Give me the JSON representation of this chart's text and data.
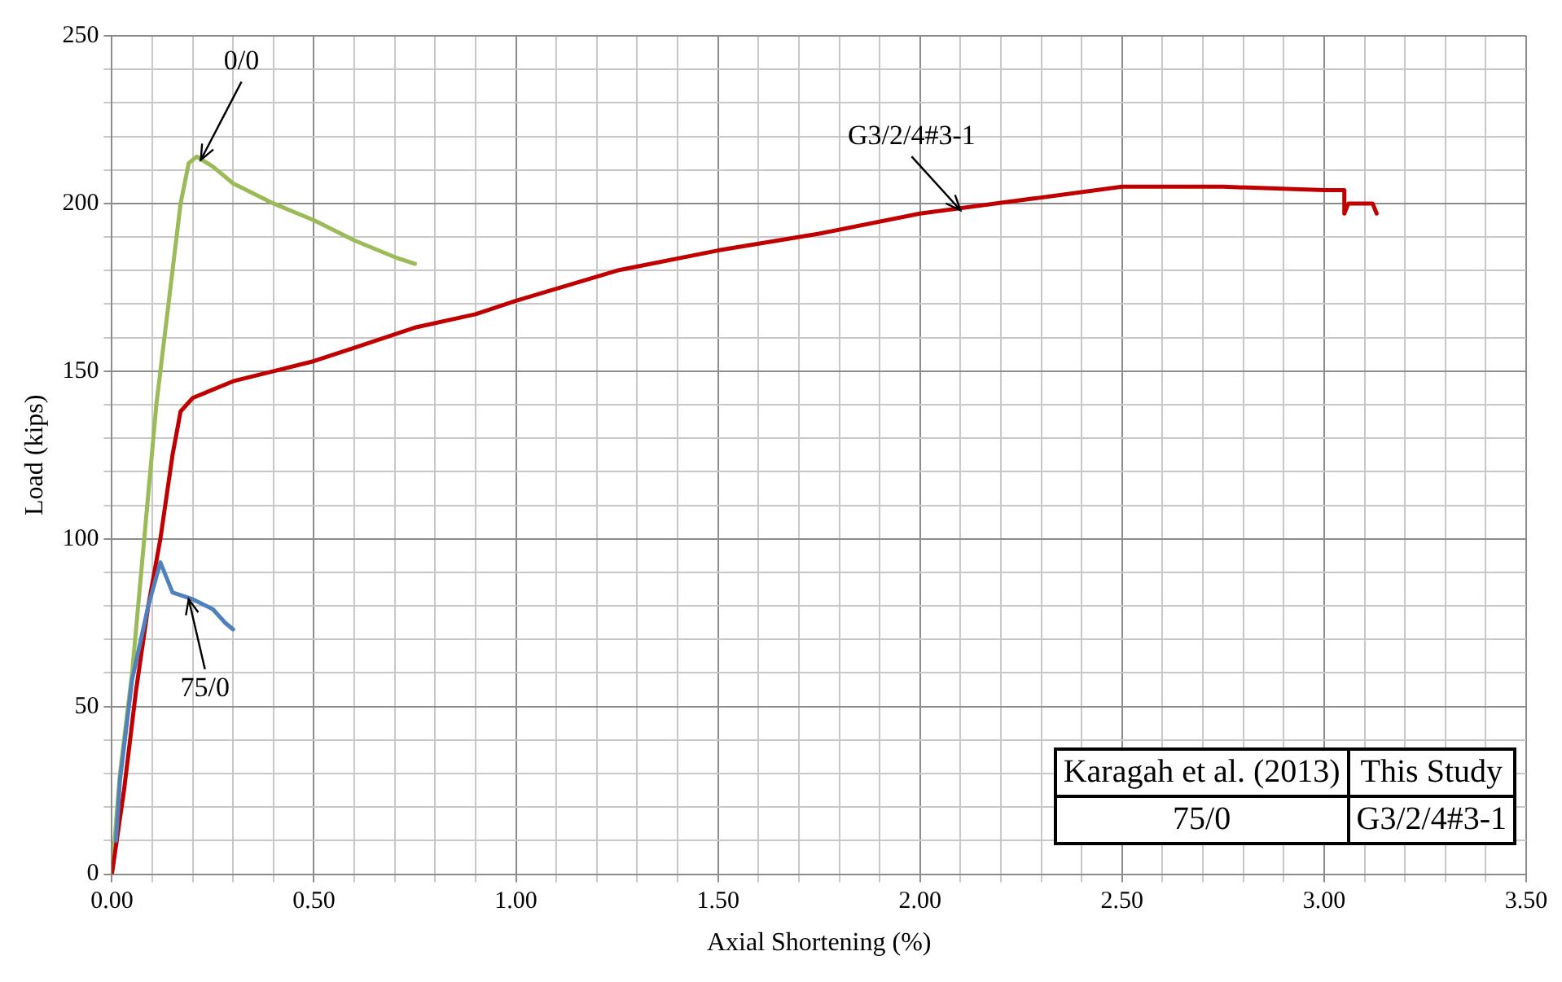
{
  "chart_data": {
    "type": "line",
    "xlabel": "Axial Shortening (%)",
    "ylabel": "Load (kips)",
    "series": [
      {
        "color": "#9bbb59",
        "x": [
          0,
          0.02,
          0.05,
          0.08,
          0.11,
          0.14,
          0.17,
          0.19,
          0.21,
          0.25,
          0.3,
          0.4,
          0.5,
          0.6,
          0.7,
          0.75
        ],
        "values": [
          0,
          30,
          60,
          100,
          140,
          170,
          200,
          212,
          214,
          211,
          206,
          200,
          195,
          189,
          184,
          182
        ]
      },
      {
        "color": "#c00000",
        "x": [
          0,
          0.03,
          0.06,
          0.09,
          0.12,
          0.15,
          0.17,
          0.2,
          0.3,
          0.4,
          0.5,
          0.6,
          0.75,
          0.9,
          1.0,
          1.25,
          1.5,
          1.75,
          2.0,
          2.25,
          2.5,
          2.75,
          3.0,
          3.05,
          3.05,
          3.06,
          3.12,
          3.13
        ],
        "values": [
          0,
          25,
          55,
          80,
          100,
          125,
          138,
          142,
          147,
          150,
          153,
          157,
          163,
          167,
          171,
          180,
          186,
          191,
          197,
          201,
          205,
          205,
          204,
          204,
          197,
          200,
          200,
          197
        ]
      },
      {
        "color": "#4f81bd",
        "x": [
          0.01,
          0.02,
          0.05,
          0.09,
          0.12,
          0.15,
          0.2,
          0.25,
          0.28,
          0.3
        ],
        "values": [
          10,
          28,
          58,
          80,
          93,
          84,
          82,
          79,
          75,
          73
        ]
      }
    ],
    "xlim": [
      0,
      3.5
    ],
    "ylim": [
      0,
      250
    ],
    "xticks": [
      {
        "value": 0,
        "label": "0.00"
      },
      {
        "value": 0.1,
        "label": null
      },
      {
        "value": 0.2,
        "label": null
      },
      {
        "value": 0.3,
        "label": null
      },
      {
        "value": 0.4,
        "label": null
      },
      {
        "value": 0.5,
        "label": "0.50"
      },
      {
        "value": 0.6,
        "label": null
      },
      {
        "value": 0.7,
        "label": null
      },
      {
        "value": 0.8,
        "label": null
      },
      {
        "value": 0.9,
        "label": null
      },
      {
        "value": 1,
        "label": "1.00"
      },
      {
        "value": 1.1,
        "label": null
      },
      {
        "value": 1.2,
        "label": null
      },
      {
        "value": 1.3,
        "label": null
      },
      {
        "value": 1.4,
        "label": null
      },
      {
        "value": 1.5,
        "label": "1.50"
      },
      {
        "value": 1.6,
        "label": null
      },
      {
        "value": 1.7,
        "label": null
      },
      {
        "value": 1.8,
        "label": null
      },
      {
        "value": 1.9,
        "label": null
      },
      {
        "value": 2,
        "label": "2.00"
      },
      {
        "value": 2.1,
        "label": null
      },
      {
        "value": 2.2,
        "label": null
      },
      {
        "value": 2.3,
        "label": null
      },
      {
        "value": 2.4,
        "label": null
      },
      {
        "value": 2.5,
        "label": "2.50"
      },
      {
        "value": 2.6,
        "label": null
      },
      {
        "value": 2.7,
        "label": null
      },
      {
        "value": 2.8,
        "label": null
      },
      {
        "value": 2.9,
        "label": null
      },
      {
        "value": 3,
        "label": "3.00"
      },
      {
        "value": 3.1,
        "label": null
      },
      {
        "value": 3.2,
        "label": null
      },
      {
        "value": 3.3,
        "label": null
      },
      {
        "value": 3.4,
        "label": null
      },
      {
        "value": 3.5,
        "label": "3.50"
      }
    ],
    "yticks": [
      0,
      {
        "value": 10,
        "label": null
      },
      {
        "value": 20,
        "label": null
      },
      {
        "value": 30,
        "label": null
      },
      {
        "value": 40,
        "label": null
      },
      50,
      {
        "value": 60,
        "label": null
      },
      {
        "value": 70,
        "label": null
      },
      {
        "value": 80,
        "label": null
      },
      {
        "value": 90,
        "label": null
      },
      100,
      {
        "value": 110,
        "label": null
      },
      {
        "value": 120,
        "label": null
      },
      {
        "value": 130,
        "label": null
      },
      {
        "value": 140,
        "label": null
      },
      150,
      {
        "value": 160,
        "label": null
      },
      {
        "value": 170,
        "label": null
      },
      {
        "value": 180,
        "label": null
      },
      {
        "value": 190,
        "label": null
      },
      200,
      {
        "value": 210,
        "label": null
      },
      {
        "value": 220,
        "label": null
      },
      {
        "value": 230,
        "label": null
      },
      {
        "value": 240,
        "label": null
      },
      250
    ],
    "grid": true,
    "legend": false,
    "marker": "none",
    "line_style": "solid",
    "annotations": [
      {
        "text": "0/0",
        "x": 0.22,
        "y": 213
      },
      {
        "text": "G3/2/4#3-1",
        "x": 2.1,
        "y": 198
      },
      {
        "text": "75/0",
        "x": 0.19,
        "y": 82
      },
      "Karagah et al. (2013)",
      "This Study",
      "75/0",
      "G3/2/4#3-1"
    ]
  }
}
